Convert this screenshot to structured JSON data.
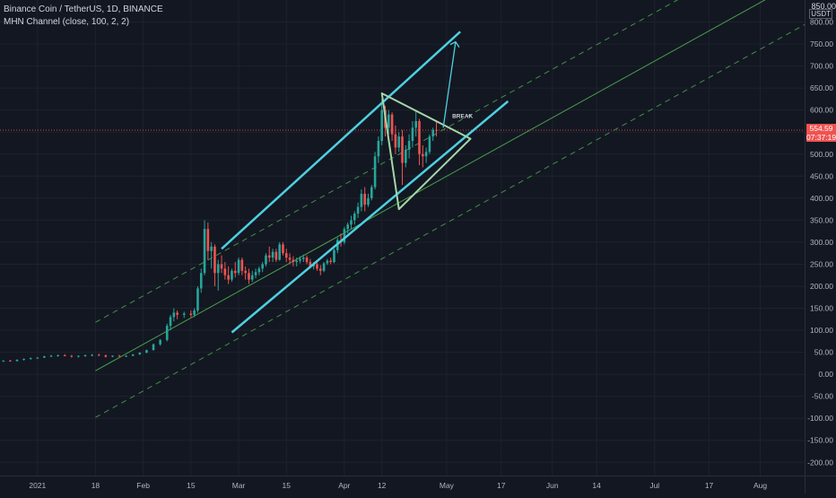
{
  "header": {
    "symbol_line": "Binance Coin / TetherUS, 1D, BINANCE",
    "indicator_line": "MHN Channel (close, 100, 2, 2)"
  },
  "price_scale": {
    "unit": "USDT",
    "top_label": "850.00",
    "current_price": "554.59",
    "countdown": "07:37:19"
  },
  "colors": {
    "background": "#131722",
    "grid": "#1e222d",
    "candle_up": "#26a69a",
    "candle_down": "#ef5350",
    "trendline": "#4dd0e1",
    "triangle": "#a5d6a7",
    "regression": "#4caf50",
    "price_line": "#ef5350",
    "axis_text": "#b2b5be"
  },
  "annotations": {
    "break_label": "BREAK"
  },
  "chart_data": {
    "type": "candlestick",
    "title": "Binance Coin / TetherUS, 1D, BINANCE",
    "y_ticks": [
      "800.00",
      "750.00",
      "700.00",
      "650.00",
      "600.00",
      "550.00",
      "500.00",
      "450.00",
      "400.00",
      "350.00",
      "300.00",
      "250.00",
      "200.00",
      "150.00",
      "100.00",
      "50.00",
      "0.00",
      "-50.00",
      "-100.00",
      "-150.00",
      "-200.00"
    ],
    "y_tick_values": [
      800,
      750,
      700,
      650,
      600,
      550,
      500,
      450,
      400,
      350,
      300,
      250,
      200,
      150,
      100,
      50,
      0,
      -50,
      -100,
      -150,
      -200
    ],
    "x_ticks": [
      {
        "label": "2021",
        "date": "2021-01-01"
      },
      {
        "label": "18",
        "date": "2021-01-18"
      },
      {
        "label": "Feb",
        "date": "2021-02-01"
      },
      {
        "label": "15",
        "date": "2021-02-15"
      },
      {
        "label": "Mar",
        "date": "2021-03-01"
      },
      {
        "label": "15",
        "date": "2021-03-15"
      },
      {
        "label": "Apr",
        "date": "2021-04-01"
      },
      {
        "label": "12",
        "date": "2021-04-12"
      },
      {
        "label": "May",
        "date": "2021-05-01"
      },
      {
        "label": "17",
        "date": "2021-05-17"
      },
      {
        "label": "Jun",
        "date": "2021-06-01"
      },
      {
        "label": "14",
        "date": "2021-06-14"
      },
      {
        "label": "Jul",
        "date": "2021-07-01"
      },
      {
        "label": "17",
        "date": "2021-07-17"
      },
      {
        "label": "Aug",
        "date": "2021-08-01"
      }
    ],
    "ylim": [
      -230,
      850
    ],
    "xlim": [
      "2020-12-21",
      "2021-08-14"
    ],
    "current_price": 554.59,
    "candles": [
      [
        "2020-12-22",
        30,
        32,
        28,
        31
      ],
      [
        "2020-12-24",
        31,
        33,
        29,
        30
      ],
      [
        "2020-12-26",
        30,
        34,
        29,
        33
      ],
      [
        "2020-12-28",
        33,
        36,
        31,
        35
      ],
      [
        "2020-12-30",
        35,
        38,
        33,
        37
      ],
      [
        "2021-01-01",
        37,
        39,
        35,
        38
      ],
      [
        "2021-01-03",
        38,
        42,
        37,
        41
      ],
      [
        "2021-01-05",
        41,
        44,
        39,
        42
      ],
      [
        "2021-01-07",
        42,
        45,
        40,
        43
      ],
      [
        "2021-01-09",
        43,
        46,
        41,
        42
      ],
      [
        "2021-01-11",
        42,
        44,
        38,
        40
      ],
      [
        "2021-01-13",
        40,
        43,
        38,
        42
      ],
      [
        "2021-01-15",
        42,
        45,
        40,
        43
      ],
      [
        "2021-01-17",
        43,
        46,
        41,
        44
      ],
      [
        "2021-01-19",
        44,
        47,
        42,
        43
      ],
      [
        "2021-01-21",
        43,
        45,
        38,
        40
      ],
      [
        "2021-01-23",
        40,
        43,
        39,
        42
      ],
      [
        "2021-01-25",
        42,
        44,
        40,
        41
      ],
      [
        "2021-01-27",
        41,
        43,
        39,
        42
      ],
      [
        "2021-01-29",
        42,
        46,
        41,
        45
      ],
      [
        "2021-01-31",
        45,
        50,
        44,
        49
      ],
      [
        "2021-02-02",
        49,
        56,
        48,
        55
      ],
      [
        "2021-02-04",
        55,
        70,
        54,
        68
      ],
      [
        "2021-02-06",
        68,
        80,
        65,
        78
      ],
      [
        "2021-02-08",
        78,
        115,
        75,
        110
      ],
      [
        "2021-02-09",
        110,
        135,
        100,
        130
      ],
      [
        "2021-02-10",
        130,
        150,
        120,
        140
      ],
      [
        "2021-02-11",
        140,
        145,
        125,
        135
      ],
      [
        "2021-02-13",
        135,
        142,
        128,
        138
      ],
      [
        "2021-02-15",
        138,
        145,
        130,
        135
      ],
      [
        "2021-02-16",
        135,
        150,
        130,
        145
      ],
      [
        "2021-02-17",
        145,
        200,
        140,
        195
      ],
      [
        "2021-02-18",
        195,
        240,
        185,
        230
      ],
      [
        "2021-02-19",
        230,
        350,
        225,
        330
      ],
      [
        "2021-02-20",
        330,
        345,
        260,
        280
      ],
      [
        "2021-02-21",
        280,
        300,
        240,
        290
      ],
      [
        "2021-02-22",
        290,
        295,
        200,
        230
      ],
      [
        "2021-02-23",
        230,
        260,
        190,
        250
      ],
      [
        "2021-02-24",
        250,
        270,
        230,
        240
      ],
      [
        "2021-02-25",
        240,
        255,
        215,
        225
      ],
      [
        "2021-02-26",
        225,
        245,
        205,
        215
      ],
      [
        "2021-02-27",
        215,
        240,
        210,
        235
      ],
      [
        "2021-02-28",
        235,
        255,
        220,
        230
      ],
      [
        "2021-03-01",
        230,
        265,
        225,
        260
      ],
      [
        "2021-03-02",
        260,
        265,
        225,
        235
      ],
      [
        "2021-03-03",
        235,
        245,
        215,
        230
      ],
      [
        "2021-03-04",
        230,
        240,
        205,
        215
      ],
      [
        "2021-03-05",
        215,
        235,
        210,
        225
      ],
      [
        "2021-03-06",
        225,
        240,
        218,
        232
      ],
      [
        "2021-03-07",
        232,
        245,
        225,
        240
      ],
      [
        "2021-03-08",
        240,
        255,
        232,
        250
      ],
      [
        "2021-03-09",
        250,
        275,
        245,
        270
      ],
      [
        "2021-03-10",
        270,
        290,
        255,
        265
      ],
      [
        "2021-03-11",
        265,
        285,
        255,
        278
      ],
      [
        "2021-03-12",
        278,
        285,
        255,
        260
      ],
      [
        "2021-03-13",
        260,
        300,
        258,
        295
      ],
      [
        "2021-03-14",
        295,
        300,
        270,
        275
      ],
      [
        "2021-03-15",
        275,
        285,
        255,
        265
      ],
      [
        "2021-03-16",
        265,
        275,
        250,
        260
      ],
      [
        "2021-03-17",
        260,
        268,
        245,
        255
      ],
      [
        "2021-03-18",
        255,
        265,
        245,
        258
      ],
      [
        "2021-03-19",
        258,
        268,
        252,
        262
      ],
      [
        "2021-03-20",
        262,
        272,
        255,
        265
      ],
      [
        "2021-03-21",
        265,
        270,
        250,
        255
      ],
      [
        "2021-03-22",
        255,
        262,
        240,
        245
      ],
      [
        "2021-03-23",
        245,
        255,
        238,
        250
      ],
      [
        "2021-03-24",
        250,
        258,
        235,
        240
      ],
      [
        "2021-03-25",
        240,
        248,
        225,
        235
      ],
      [
        "2021-03-26",
        235,
        255,
        232,
        252
      ],
      [
        "2021-03-27",
        252,
        262,
        248,
        258
      ],
      [
        "2021-03-28",
        258,
        265,
        250,
        255
      ],
      [
        "2021-03-29",
        255,
        285,
        252,
        282
      ],
      [
        "2021-03-30",
        282,
        310,
        275,
        305
      ],
      [
        "2021-03-31",
        305,
        320,
        290,
        300
      ],
      [
        "2021-04-01",
        300,
        335,
        295,
        330
      ],
      [
        "2021-04-02",
        330,
        345,
        320,
        340
      ],
      [
        "2021-04-03",
        340,
        360,
        330,
        350
      ],
      [
        "2021-04-04",
        350,
        370,
        340,
        365
      ],
      [
        "2021-04-05",
        365,
        390,
        355,
        380
      ],
      [
        "2021-04-06",
        380,
        420,
        370,
        410
      ],
      [
        "2021-04-07",
        410,
        425,
        370,
        385
      ],
      [
        "2021-04-08",
        385,
        410,
        380,
        400
      ],
      [
        "2021-04-09",
        400,
        430,
        395,
        425
      ],
      [
        "2021-04-10",
        425,
        505,
        420,
        495
      ],
      [
        "2021-04-11",
        495,
        540,
        480,
        530
      ],
      [
        "2021-04-12",
        530,
        625,
        520,
        600
      ],
      [
        "2021-04-13",
        600,
        610,
        540,
        560
      ],
      [
        "2021-04-14",
        560,
        600,
        545,
        590
      ],
      [
        "2021-04-15",
        590,
        595,
        530,
        545
      ],
      [
        "2021-04-16",
        545,
        565,
        500,
        515
      ],
      [
        "2021-04-17",
        515,
        550,
        505,
        540
      ],
      [
        "2021-04-18",
        540,
        555,
        430,
        480
      ],
      [
        "2021-04-19",
        480,
        520,
        470,
        510
      ],
      [
        "2021-04-20",
        510,
        545,
        490,
        530
      ],
      [
        "2021-04-21",
        530,
        575,
        515,
        560
      ],
      [
        "2021-04-22",
        560,
        600,
        540,
        575
      ],
      [
        "2021-04-23",
        575,
        580,
        475,
        500
      ],
      [
        "2021-04-24",
        500,
        520,
        470,
        495
      ],
      [
        "2021-04-25",
        495,
        515,
        480,
        505
      ],
      [
        "2021-04-26",
        505,
        545,
        500,
        540
      ],
      [
        "2021-04-27",
        540,
        560,
        530,
        555
      ],
      [
        "2021-04-28",
        555,
        575,
        540,
        554.59
      ]
    ],
    "regression_line": [
      [
        "2021-01-18",
        8
      ],
      [
        "2021-08-14",
        900
      ]
    ],
    "regression_upper": [
      [
        "2021-01-18",
        118
      ],
      [
        "2021-08-14",
        1010
      ]
    ],
    "regression_lower": [
      [
        "2021-01-18",
        -98
      ],
      [
        "2021-08-14",
        794
      ]
    ],
    "channel_upper": [
      [
        "2021-02-24",
        285
      ],
      [
        "2021-05-05",
        778
      ]
    ],
    "channel_lower": [
      [
        "2021-02-27",
        95
      ],
      [
        "2021-05-19",
        620
      ]
    ],
    "triangle": [
      [
        "2021-04-12",
        638
      ],
      [
        "2021-04-17",
        375
      ],
      [
        "2021-05-08",
        535
      ]
    ],
    "projection_arrow": [
      [
        "2021-04-30",
        560
      ],
      [
        "2021-05-01",
        755
      ]
    ],
    "break_label_at": [
      "2021-04-30",
      582
    ]
  }
}
